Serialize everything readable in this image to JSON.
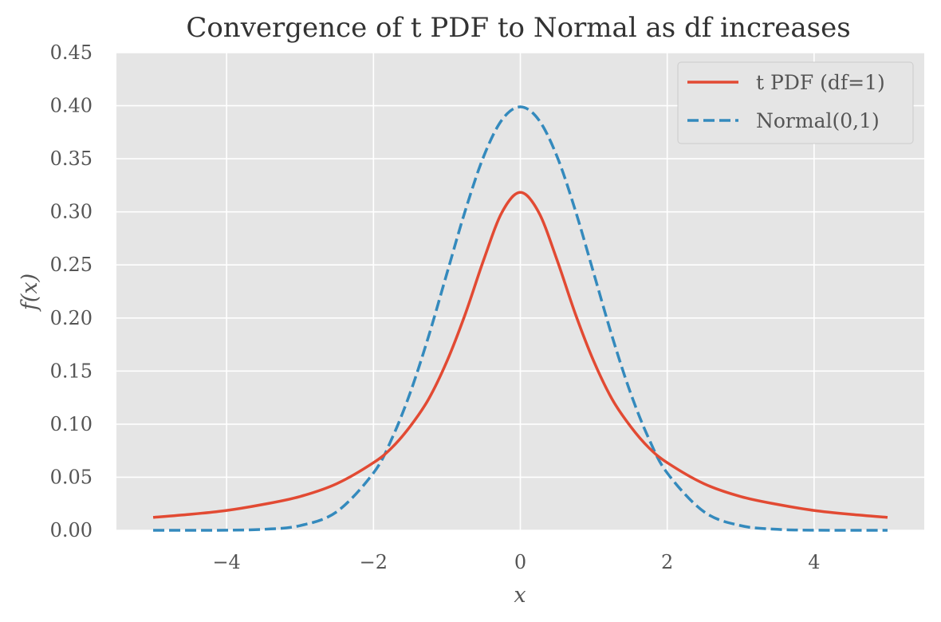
{
  "chart_data": {
    "type": "line",
    "title": "Convergence of t PDF to Normal as df increases",
    "xlabel": "x",
    "ylabel": "f(x)",
    "xlim": [
      -5.5,
      5.5
    ],
    "ylim": [
      0,
      0.45
    ],
    "x_ticks": [
      -4,
      -2,
      0,
      2,
      4
    ],
    "x_tick_labels": [
      "−4",
      "−2",
      "0",
      "2",
      "4"
    ],
    "y_ticks": [
      0,
      0.05,
      0.1,
      0.15,
      0.2,
      0.25,
      0.3,
      0.35,
      0.4,
      0.45
    ],
    "y_tick_labels": [
      "0.00",
      "0.05",
      "0.10",
      "0.15",
      "0.20",
      "0.25",
      "0.30",
      "0.35",
      "0.40",
      "0.45"
    ],
    "grid": true,
    "legend_position": "top-right",
    "x": [
      -5.0,
      -4.5,
      -4.0,
      -3.5,
      -3.0,
      -2.5,
      -2.0,
      -1.75,
      -1.5,
      -1.25,
      -1.0,
      -0.75,
      -0.5,
      -0.25,
      0.0,
      0.25,
      0.5,
      0.75,
      1.0,
      1.25,
      1.5,
      1.75,
      2.0,
      2.5,
      3.0,
      3.5,
      4.0,
      4.5,
      5.0
    ],
    "series": [
      {
        "name": "t PDF (df=1)",
        "color": "#E24A33",
        "style": "solid",
        "values": [
          0.0122,
          0.015,
          0.0187,
          0.0244,
          0.0318,
          0.0439,
          0.0637,
          0.0778,
          0.0979,
          0.1235,
          0.1592,
          0.2037,
          0.2546,
          0.2996,
          0.3183,
          0.2996,
          0.2546,
          0.2037,
          0.1592,
          0.1235,
          0.0979,
          0.0778,
          0.0637,
          0.0439,
          0.0318,
          0.0244,
          0.0187,
          0.015,
          0.0122
        ]
      },
      {
        "name": "Normal(0,1)",
        "color": "#348ABD",
        "style": "dashed",
        "values": [
          0.0,
          0.0,
          0.0001,
          0.0009,
          0.0044,
          0.0175,
          0.054,
          0.0863,
          0.1295,
          0.1826,
          0.242,
          0.3011,
          0.3521,
          0.3867,
          0.3989,
          0.3867,
          0.3521,
          0.3011,
          0.242,
          0.1826,
          0.1295,
          0.0863,
          0.054,
          0.0175,
          0.0044,
          0.0009,
          0.0001,
          0.0,
          0.0
        ]
      }
    ]
  }
}
